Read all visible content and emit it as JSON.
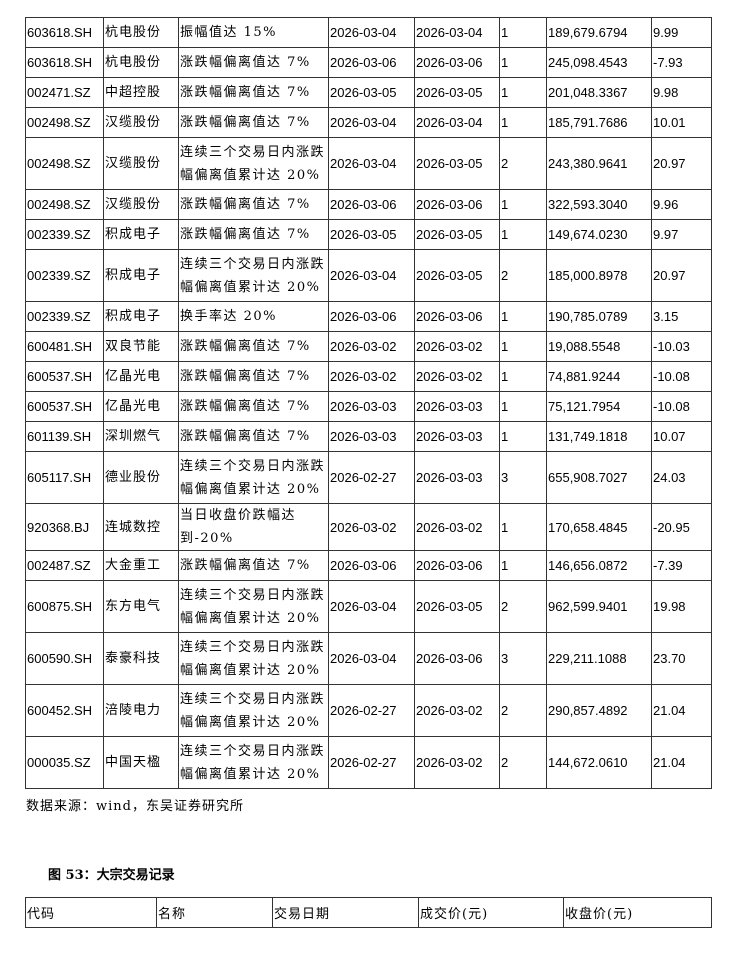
{
  "main_table": {
    "rows": [
      [
        "603618.SH",
        "杭电股份",
        "振幅值达 15%",
        "2026-03-04",
        "2026-03-04",
        "1",
        "189,679.6794",
        "9.99"
      ],
      [
        "603618.SH",
        "杭电股份",
        "涨跌幅偏离值达 7%",
        "2026-03-06",
        "2026-03-06",
        "1",
        "245,098.4543",
        "-7.93"
      ],
      [
        "002471.SZ",
        "中超控股",
        "涨跌幅偏离值达 7%",
        "2026-03-05",
        "2026-03-05",
        "1",
        "201,048.3367",
        "9.98"
      ],
      [
        "002498.SZ",
        "汉缆股份",
        "涨跌幅偏离值达 7%",
        "2026-03-04",
        "2026-03-04",
        "1",
        "185,791.7686",
        "10.01"
      ],
      [
        "002498.SZ",
        "汉缆股份",
        "连续三个交易日内涨跌幅偏离值累计达 20%",
        "2026-03-04",
        "2026-03-05",
        "2",
        "243,380.9641",
        "20.97"
      ],
      [
        "002498.SZ",
        "汉缆股份",
        "涨跌幅偏离值达 7%",
        "2026-03-06",
        "2026-03-06",
        "1",
        "322,593.3040",
        "9.96"
      ],
      [
        "002339.SZ",
        "积成电子",
        "涨跌幅偏离值达 7%",
        "2026-03-05",
        "2026-03-05",
        "1",
        "149,674.0230",
        "9.97"
      ],
      [
        "002339.SZ",
        "积成电子",
        "连续三个交易日内涨跌幅偏离值累计达 20%",
        "2026-03-04",
        "2026-03-05",
        "2",
        "185,000.8978",
        "20.97"
      ],
      [
        "002339.SZ",
        "积成电子",
        "换手率达 20%",
        "2026-03-06",
        "2026-03-06",
        "1",
        "190,785.0789",
        "3.15"
      ],
      [
        "600481.SH",
        "双良节能",
        "涨跌幅偏离值达 7%",
        "2026-03-02",
        "2026-03-02",
        "1",
        "19,088.5548",
        "-10.03"
      ],
      [
        "600537.SH",
        "亿晶光电",
        "涨跌幅偏离值达 7%",
        "2026-03-02",
        "2026-03-02",
        "1",
        "74,881.9244",
        "-10.08"
      ],
      [
        "600537.SH",
        "亿晶光电",
        "涨跌幅偏离值达 7%",
        "2026-03-03",
        "2026-03-03",
        "1",
        "75,121.7954",
        "-10.08"
      ],
      [
        "601139.SH",
        "深圳燃气",
        "涨跌幅偏离值达 7%",
        "2026-03-03",
        "2026-03-03",
        "1",
        "131,749.1818",
        "10.07"
      ],
      [
        "605117.SH",
        "德业股份",
        "连续三个交易日内涨跌幅偏离值累计达 20%",
        "2026-02-27",
        "2026-03-03",
        "3",
        "655,908.7027",
        "24.03"
      ],
      [
        "920368.BJ",
        "连城数控",
        "当日收盘价跌幅达到-20%",
        "2026-03-02",
        "2026-03-02",
        "1",
        "170,658.4845",
        "-20.95"
      ],
      [
        "002487.SZ",
        "大金重工",
        "涨跌幅偏离值达 7%",
        "2026-03-06",
        "2026-03-06",
        "1",
        "146,656.0872",
        "-7.39"
      ],
      [
        "600875.SH",
        "东方电气",
        "连续三个交易日内涨跌幅偏离值累计达 20%",
        "2026-03-04",
        "2026-03-05",
        "2",
        "962,599.9401",
        "19.98"
      ],
      [
        "600590.SH",
        "泰豪科技",
        "连续三个交易日内涨跌幅偏离值累计达 20%",
        "2026-03-04",
        "2026-03-06",
        "3",
        "229,211.1088",
        "23.70"
      ],
      [
        "600452.SH",
        "涪陵电力",
        "连续三个交易日内涨跌幅偏离值累计达 20%",
        "2026-02-27",
        "2026-03-02",
        "2",
        "290,857.4892",
        "21.04"
      ],
      [
        "000035.SZ",
        "中国天楹",
        "连续三个交易日内涨跌幅偏离值累计达 20%",
        "2026-02-27",
        "2026-03-02",
        "2",
        "144,672.0610",
        "21.04"
      ]
    ]
  },
  "source": "数据来源：wind，东吴证券研究所",
  "caption": "图 53：大宗交易记录",
  "block_table": {
    "headers": [
      "代码",
      "名称",
      "交易日期",
      "成交价(元)",
      "收盘价(元)"
    ]
  }
}
